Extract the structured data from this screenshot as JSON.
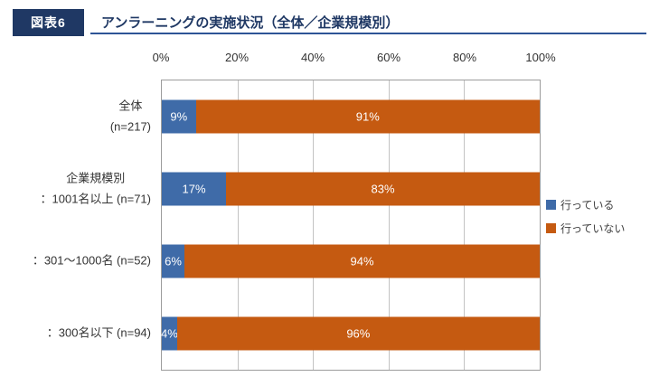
{
  "header": {
    "badge": "図表6",
    "title": "アンラーニングの実施状況（全体／企業規模別）"
  },
  "colors": {
    "navy": "#1F3864",
    "header_line": "#2E5496",
    "implementing_blue": "#3F6BA8",
    "not_implementing_orange": "#C55A11"
  },
  "chart_data": {
    "type": "bar",
    "orientation": "horizontal",
    "stacked": true,
    "title": "アンラーニングの実施状況（全体／企業規模別）",
    "x_ticks": [
      "0%",
      "20%",
      "40%",
      "60%",
      "80%",
      "100%"
    ],
    "xlim": [
      0,
      100
    ],
    "grid": true,
    "legend_position": "right",
    "categories": [
      [
        "全体",
        "(n=217)"
      ],
      [
        "企業規模別",
        "：1001名以上 (n=71)"
      ],
      [
        "：301〜1000名 (n=52)"
      ],
      [
        "：300名以下 (n=94)"
      ]
    ],
    "series": [
      {
        "key": "implementing",
        "name": "行っている",
        "color": "#3F6BA8",
        "values": [
          9,
          17,
          6,
          4
        ]
      },
      {
        "key": "not-implementing",
        "name": "行っていない",
        "color": "#C55A11",
        "values": [
          91,
          83,
          94,
          96
        ]
      }
    ],
    "value_suffix": "%"
  }
}
